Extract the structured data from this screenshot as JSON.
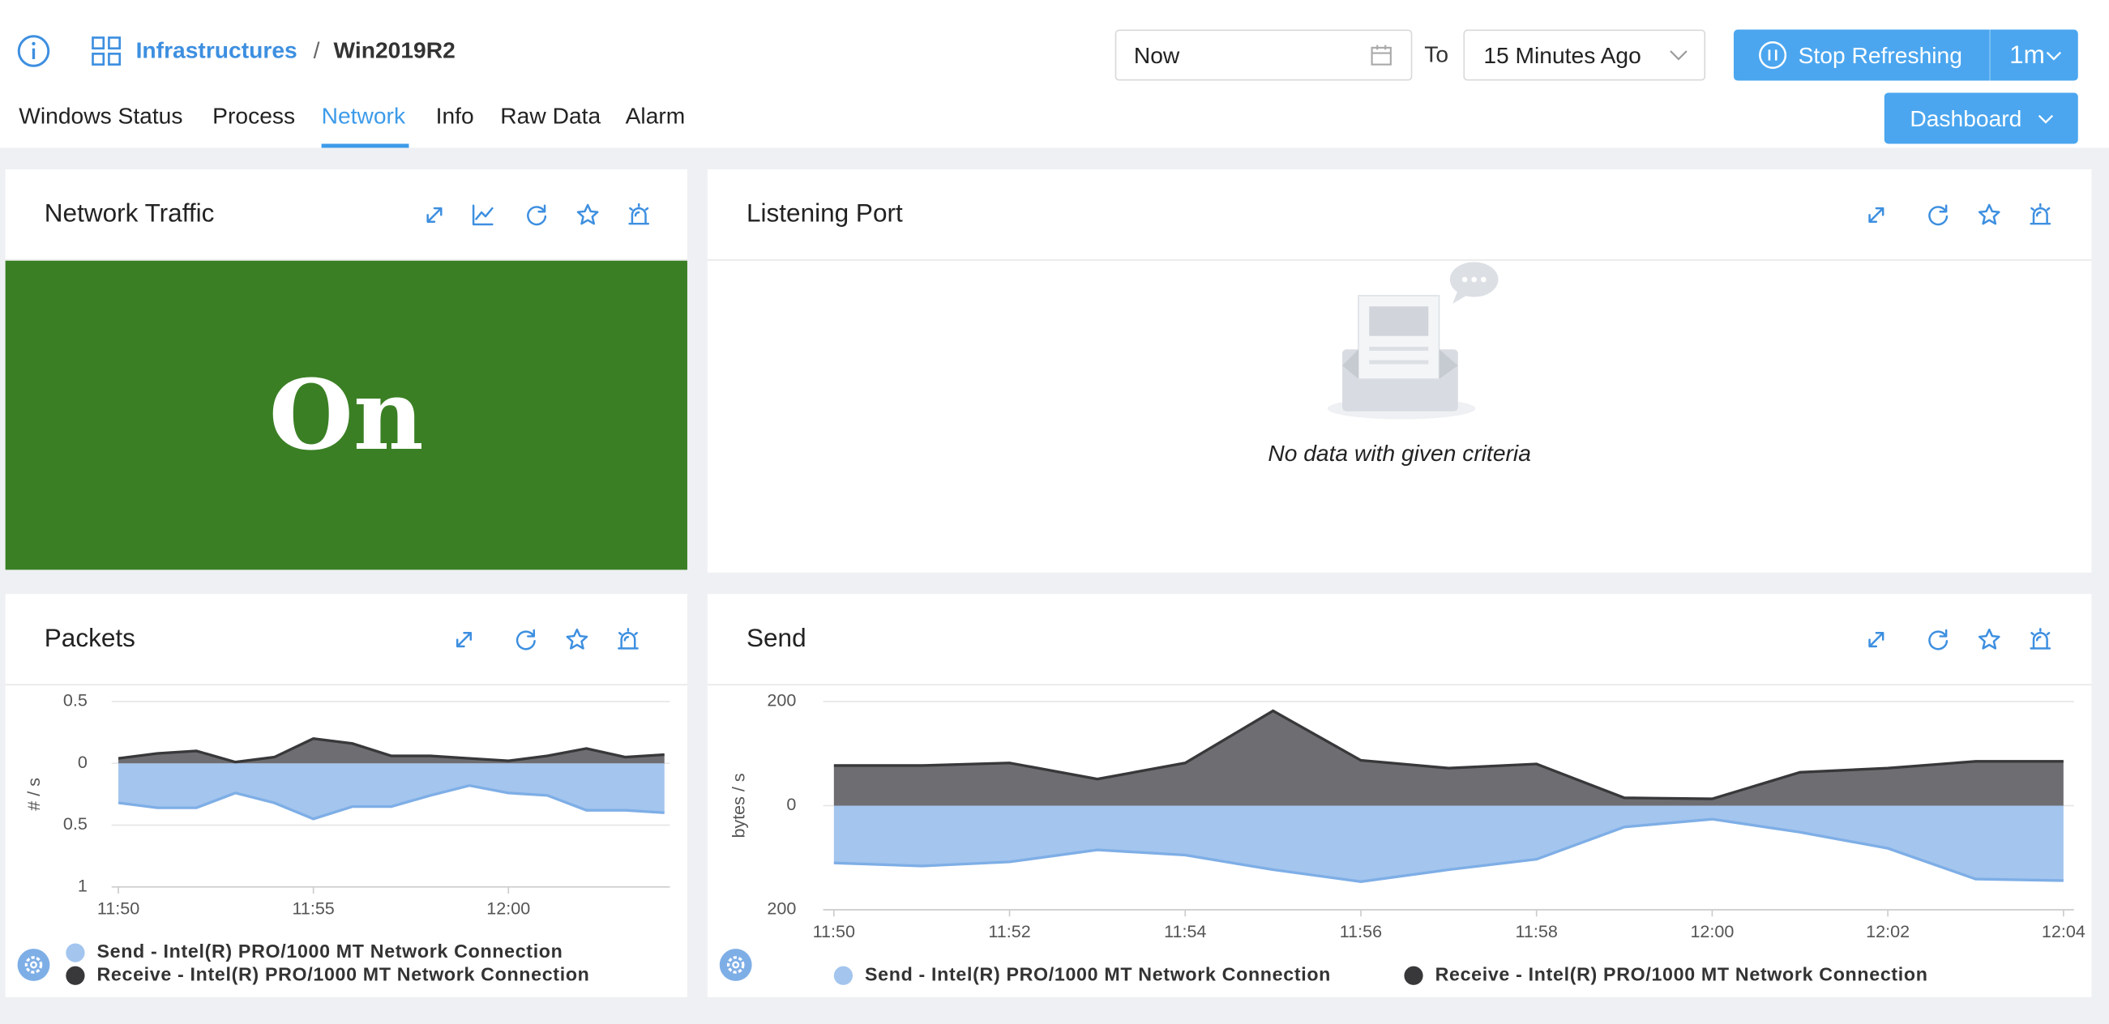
{
  "header": {
    "breadcrumb": [
      "Infrastructures",
      "Win2019R2"
    ],
    "separator": "/",
    "from": "Now",
    "to_label": "To",
    "to": "15 Minutes Ago",
    "refresh": "Stop Refreshing",
    "interval": "1m",
    "dashboard": "Dashboard"
  },
  "tabs": [
    "Windows Status",
    "Process",
    "Network",
    "Info",
    "Raw Data",
    "Alarm"
  ],
  "panels": [
    {
      "title": "Network Traffic",
      "status": "On"
    },
    {
      "title": "Listening Port",
      "empty": "No data with given criteria"
    }
  ],
  "chart_data": [
    {
      "type": "area",
      "title": "Packets",
      "ylabel": "# / s",
      "x": [
        "11:50",
        "11:51",
        "11:52",
        "11:53",
        "11:54",
        "11:55",
        "11:56",
        "11:57",
        "11:58",
        "11:59",
        "12:00",
        "12:01",
        "12:02",
        "12:03",
        "12:04"
      ],
      "xticks": [
        "11:50",
        "11:55",
        "12:00"
      ],
      "ylim": [
        -1,
        0.5
      ],
      "yticks": [
        0.5,
        0,
        {
          "value": -0.5,
          "label": "0.5"
        },
        {
          "value": -1,
          "label": "1"
        }
      ],
      "legend": "bottom-stacked",
      "series": [
        {
          "name": "Send - Intel(R) PRO/1000 MT Network Connection",
          "color": "#a3c5ee",
          "line_color": "#7eaee6",
          "values": [
            -0.32,
            -0.36,
            -0.36,
            -0.24,
            -0.32,
            -0.45,
            -0.35,
            -0.35,
            -0.26,
            -0.18,
            -0.24,
            -0.26,
            -0.38,
            -0.38,
            -0.4
          ]
        },
        {
          "name": "Receive - Intel(R) PRO/1000 MT Network Connection",
          "color": "#6e6e72",
          "line_color": "#38383b",
          "values": [
            0.04,
            0.08,
            0.1,
            0.01,
            0.05,
            0.2,
            0.16,
            0.06,
            0.06,
            0.04,
            0.02,
            0.06,
            0.12,
            0.05,
            0.07
          ]
        }
      ]
    },
    {
      "type": "area",
      "title": "Send",
      "ylabel": "bytes / s",
      "x": [
        "11:50",
        "11:51",
        "11:52",
        "11:53",
        "11:54",
        "11:55",
        "11:56",
        "11:57",
        "11:58",
        "11:59",
        "12:00",
        "12:01",
        "12:02",
        "12:03",
        "12:04"
      ],
      "xticks": [
        "11:50",
        "11:52",
        "11:54",
        "11:56",
        "11:58",
        "12:00",
        "12:02",
        "12:04"
      ],
      "ylim": [
        -200,
        200
      ],
      "yticks": [
        200,
        0,
        {
          "value": -200,
          "label": "200"
        }
      ],
      "legend": "bottom-row",
      "series": [
        {
          "name": "Send - Intel(R) PRO/1000 MT Network Connection",
          "color": "#a3c5ee",
          "line_color": "#7eaee6",
          "values": [
            -110,
            -116,
            -108,
            -85,
            -95,
            -123,
            -146,
            -123,
            -103,
            -41,
            -26,
            -51,
            -82,
            -141,
            -144
          ]
        },
        {
          "name": "Receive - Intel(R) PRO/1000 MT Network Connection",
          "color": "#6e6e72",
          "line_color": "#38383b",
          "values": [
            77,
            77,
            82,
            51,
            82,
            182,
            87,
            72,
            80,
            15,
            13,
            64,
            72,
            85,
            85
          ]
        }
      ]
    }
  ]
}
